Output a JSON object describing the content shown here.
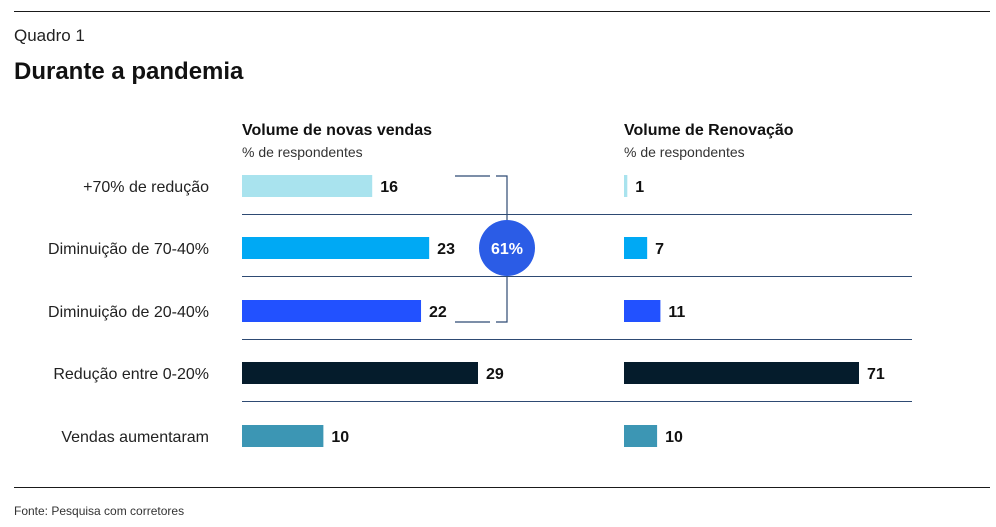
{
  "header": {
    "kicker": "Quadro 1",
    "title": "Durante a pandemia"
  },
  "footer": {
    "source": "Fonte: Pesquisa com corretores"
  },
  "colors": {
    "separator": "#2e4a73",
    "bracket": "#2e4a73",
    "badge": "#2b5ce6"
  },
  "chart_data": [
    {
      "type": "bar",
      "orientation": "horizontal",
      "title": "Volume de novas vendas",
      "subtitle": "% de respondentes",
      "categories": [
        "+70% de redução",
        "Diminuição de 70-40%",
        "Diminuição de 20-40%",
        "Redução entre 0-20%",
        "Vendas aumentaram"
      ],
      "values": [
        16,
        23,
        22,
        29,
        10
      ],
      "bar_colors": [
        "#a9e3ee",
        "#00a9f4",
        "#2251ff",
        "#051c2c",
        "#3c96b4"
      ],
      "annotation": {
        "label": "61%",
        "spans_categories": [
          0,
          1,
          2
        ]
      },
      "grid": false,
      "legend": "none"
    },
    {
      "type": "bar",
      "orientation": "horizontal",
      "title": "Volume de Renovação",
      "subtitle": "% de respondentes",
      "categories": [
        "+70% de redução",
        "Diminuição de 70-40%",
        "Diminuição de 20-40%",
        "Redução entre 0-20%",
        "Vendas aumentaram"
      ],
      "values": [
        1,
        7,
        11,
        71,
        10
      ],
      "bar_colors": [
        "#a9e3ee",
        "#00a9f4",
        "#2251ff",
        "#051c2c",
        "#3c96b4"
      ],
      "grid": false,
      "legend": "none"
    }
  ]
}
